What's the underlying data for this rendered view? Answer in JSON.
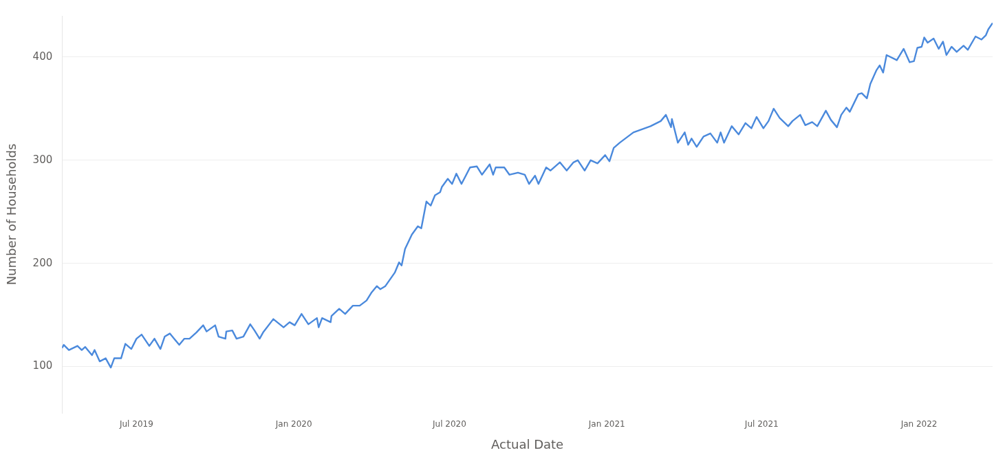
{
  "chart_data": {
    "type": "line",
    "xlabel": "Actual Date",
    "ylabel": "Number of Households",
    "x": [
      "2019-04-05",
      "2019-04-07",
      "2019-04-13",
      "2019-04-23",
      "2019-04-28",
      "2019-05-02",
      "2019-05-10",
      "2019-05-13",
      "2019-05-19",
      "2019-05-26",
      "2019-06-01",
      "2019-06-05",
      "2019-06-13",
      "2019-06-18",
      "2019-06-25",
      "2019-07-01",
      "2019-07-07",
      "2019-07-16",
      "2019-07-22",
      "2019-07-29",
      "2019-08-03",
      "2019-08-09",
      "2019-08-20",
      "2019-08-26",
      "2019-09-01",
      "2019-09-09",
      "2019-09-17",
      "2019-09-21",
      "2019-10-01",
      "2019-10-05",
      "2019-10-13",
      "2019-10-14",
      "2019-10-21",
      "2019-10-26",
      "2019-11-03",
      "2019-11-11",
      "2019-11-16",
      "2019-11-22",
      "2019-11-26",
      "2019-12-08",
      "2019-12-20",
      "2019-12-27",
      "2020-01-02",
      "2020-01-10",
      "2020-01-18",
      "2020-01-28",
      "2020-01-30",
      "2020-02-03",
      "2020-02-13",
      "2020-02-14",
      "2020-02-23",
      "2020-03-01",
      "2020-03-10",
      "2020-03-18",
      "2020-03-26",
      "2020-04-01",
      "2020-04-07",
      "2020-04-11",
      "2020-04-17",
      "2020-04-28",
      "2020-05-03",
      "2020-05-06",
      "2020-05-10",
      "2020-05-18",
      "2020-05-25",
      "2020-05-29",
      "2020-06-04",
      "2020-06-09",
      "2020-06-14",
      "2020-06-20",
      "2020-06-22",
      "2020-06-29",
      "2020-07-04",
      "2020-07-09",
      "2020-07-15",
      "2020-07-25",
      "2020-08-02",
      "2020-08-08",
      "2020-08-17",
      "2020-08-21",
      "2020-08-24",
      "2020-09-03",
      "2020-09-09",
      "2020-09-19",
      "2020-09-27",
      "2020-10-02",
      "2020-10-09",
      "2020-10-13",
      "2020-10-22",
      "2020-10-27",
      "2020-11-07",
      "2020-11-15",
      "2020-11-23",
      "2020-11-28",
      "2020-12-06",
      "2020-12-13",
      "2020-12-21",
      "2020-12-30",
      "2021-01-04",
      "2021-01-09",
      "2021-01-16",
      "2021-02-01",
      "2021-02-21",
      "2021-03-05",
      "2021-03-11",
      "2021-03-17",
      "2021-03-18",
      "2021-03-25",
      "2021-04-02",
      "2021-04-06",
      "2021-04-10",
      "2021-04-16",
      "2021-04-24",
      "2021-05-02",
      "2021-05-10",
      "2021-05-14",
      "2021-05-18",
      "2021-05-27",
      "2021-06-04",
      "2021-06-12",
      "2021-06-19",
      "2021-06-25",
      "2021-07-03",
      "2021-07-09",
      "2021-07-15",
      "2021-07-22",
      "2021-08-01",
      "2021-08-06",
      "2021-08-15",
      "2021-08-21",
      "2021-08-29",
      "2021-09-04",
      "2021-09-14",
      "2021-09-20",
      "2021-09-27",
      "2021-10-02",
      "2021-10-08",
      "2021-10-12",
      "2021-10-22",
      "2021-10-26",
      "2021-11-01",
      "2021-11-05",
      "2021-11-12",
      "2021-11-16",
      "2021-11-20",
      "2021-11-24",
      "2021-12-06",
      "2021-12-14",
      "2021-12-21",
      "2021-12-26",
      "2021-12-30",
      "2022-01-04",
      "2022-01-07",
      "2022-01-11",
      "2022-01-18",
      "2022-01-24",
      "2022-01-29",
      "2022-02-02",
      "2022-02-08",
      "2022-02-14",
      "2022-02-22",
      "2022-02-27",
      "2022-03-08",
      "2022-03-15",
      "2022-03-20",
      "2022-03-23",
      "2022-03-28"
    ],
    "values": [
      118,
      121,
      116,
      120,
      116,
      119,
      111,
      116,
      105,
      108,
      99,
      108,
      108,
      122,
      117,
      127,
      131,
      120,
      127,
      117,
      129,
      132,
      121,
      127,
      127,
      133,
      140,
      134,
      140,
      129,
      127,
      134,
      135,
      127,
      129,
      141,
      135,
      127,
      133,
      146,
      138,
      143,
      140,
      151,
      141,
      147,
      138,
      147,
      143,
      149,
      156,
      151,
      159,
      159,
      164,
      172,
      178,
      175,
      178,
      191,
      201,
      198,
      214,
      228,
      236,
      234,
      260,
      256,
      266,
      269,
      274,
      282,
      277,
      287,
      277,
      293,
      294,
      286,
      296,
      286,
      293,
      293,
      286,
      288,
      286,
      277,
      285,
      277,
      293,
      290,
      298,
      290,
      298,
      300,
      290,
      300,
      297,
      305,
      299,
      312,
      317,
      327,
      333,
      338,
      344,
      332,
      340,
      317,
      327,
      315,
      321,
      313,
      323,
      326,
      317,
      327,
      317,
      333,
      325,
      336,
      331,
      342,
      331,
      338,
      350,
      341,
      333,
      338,
      344,
      334,
      337,
      333,
      348,
      339,
      332,
      344,
      351,
      347,
      364,
      365,
      360,
      374,
      387,
      392,
      385,
      402,
      397,
      408,
      395,
      396,
      409,
      410,
      419,
      414,
      418,
      408,
      415,
      402,
      410,
      405,
      411,
      407,
      420,
      417,
      421,
      427,
      433
    ],
    "color": "#4a89dc",
    "marker": "none",
    "line_style": "solid",
    "grid": "y",
    "legend": false,
    "xlim": [
      "2019-04-05",
      "2022-03-28"
    ],
    "xticks": [
      {
        "value": "2019-07-01",
        "label": "Jul 2019"
      },
      {
        "value": "2020-01-01",
        "label": "Jan 2020"
      },
      {
        "value": "2020-07-01",
        "label": "Jul 2020"
      },
      {
        "value": "2021-01-01",
        "label": "Jan 2021"
      },
      {
        "value": "2021-07-01",
        "label": "Jul 2021"
      },
      {
        "value": "2022-01-01",
        "label": "Jan 2022"
      }
    ],
    "ylim": [
      55,
      440
    ],
    "yticks": [
      100,
      200,
      300,
      400
    ]
  }
}
